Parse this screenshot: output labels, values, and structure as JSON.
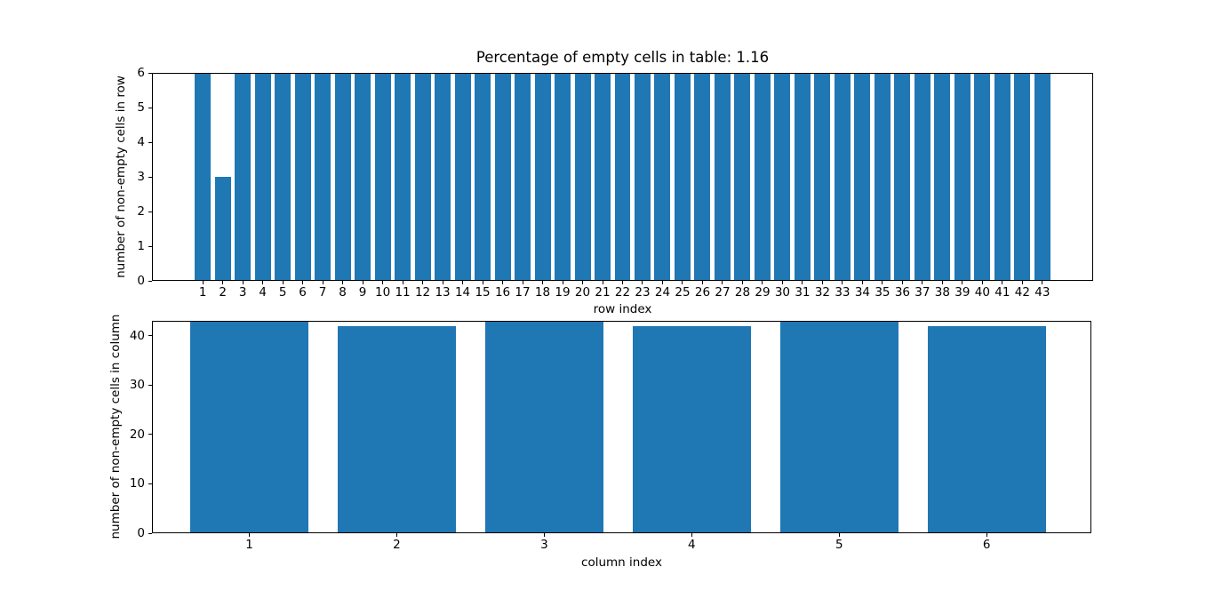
{
  "figure": {
    "background_color": "#ffffff",
    "bar_color": "#1f77b4",
    "axis_color": "#000000",
    "text_color": "#000000"
  },
  "chart_data": [
    {
      "type": "bar",
      "title": "Percentage of empty cells in table: 1.16",
      "xlabel": "row index",
      "ylabel": "number of non-empty cells in row",
      "categories": [
        "1",
        "2",
        "3",
        "4",
        "5",
        "6",
        "7",
        "8",
        "9",
        "10",
        "11",
        "12",
        "13",
        "14",
        "15",
        "16",
        "17",
        "18",
        "19",
        "20",
        "21",
        "22",
        "23",
        "24",
        "25",
        "26",
        "27",
        "28",
        "29",
        "30",
        "31",
        "32",
        "33",
        "34",
        "35",
        "36",
        "37",
        "38",
        "39",
        "40",
        "41",
        "42",
        "43"
      ],
      "values": [
        6,
        3,
        6,
        6,
        6,
        6,
        6,
        6,
        6,
        6,
        6,
        6,
        6,
        6,
        6,
        6,
        6,
        6,
        6,
        6,
        6,
        6,
        6,
        6,
        6,
        6,
        6,
        6,
        6,
        6,
        6,
        6,
        6,
        6,
        6,
        6,
        6,
        6,
        6,
        6,
        6,
        6,
        6
      ],
      "ylim": [
        0,
        6
      ],
      "yticks": [
        0,
        1,
        2,
        3,
        4,
        5,
        6
      ],
      "xlim": [
        -1.54,
        45.54
      ],
      "bar_width": 0.8,
      "grid": false,
      "legend": null
    },
    {
      "type": "bar",
      "title": "",
      "xlabel": "column index",
      "ylabel": "number of non-empty cells in column",
      "categories": [
        "1",
        "2",
        "3",
        "4",
        "5",
        "6"
      ],
      "values": [
        43,
        42,
        43,
        42,
        43,
        42
      ],
      "ylim": [
        0,
        43
      ],
      "yticks": [
        0,
        10,
        20,
        30,
        40
      ],
      "xlim": [
        0.34,
        6.71
      ],
      "bar_width": 0.8,
      "grid": false,
      "legend": null
    }
  ]
}
